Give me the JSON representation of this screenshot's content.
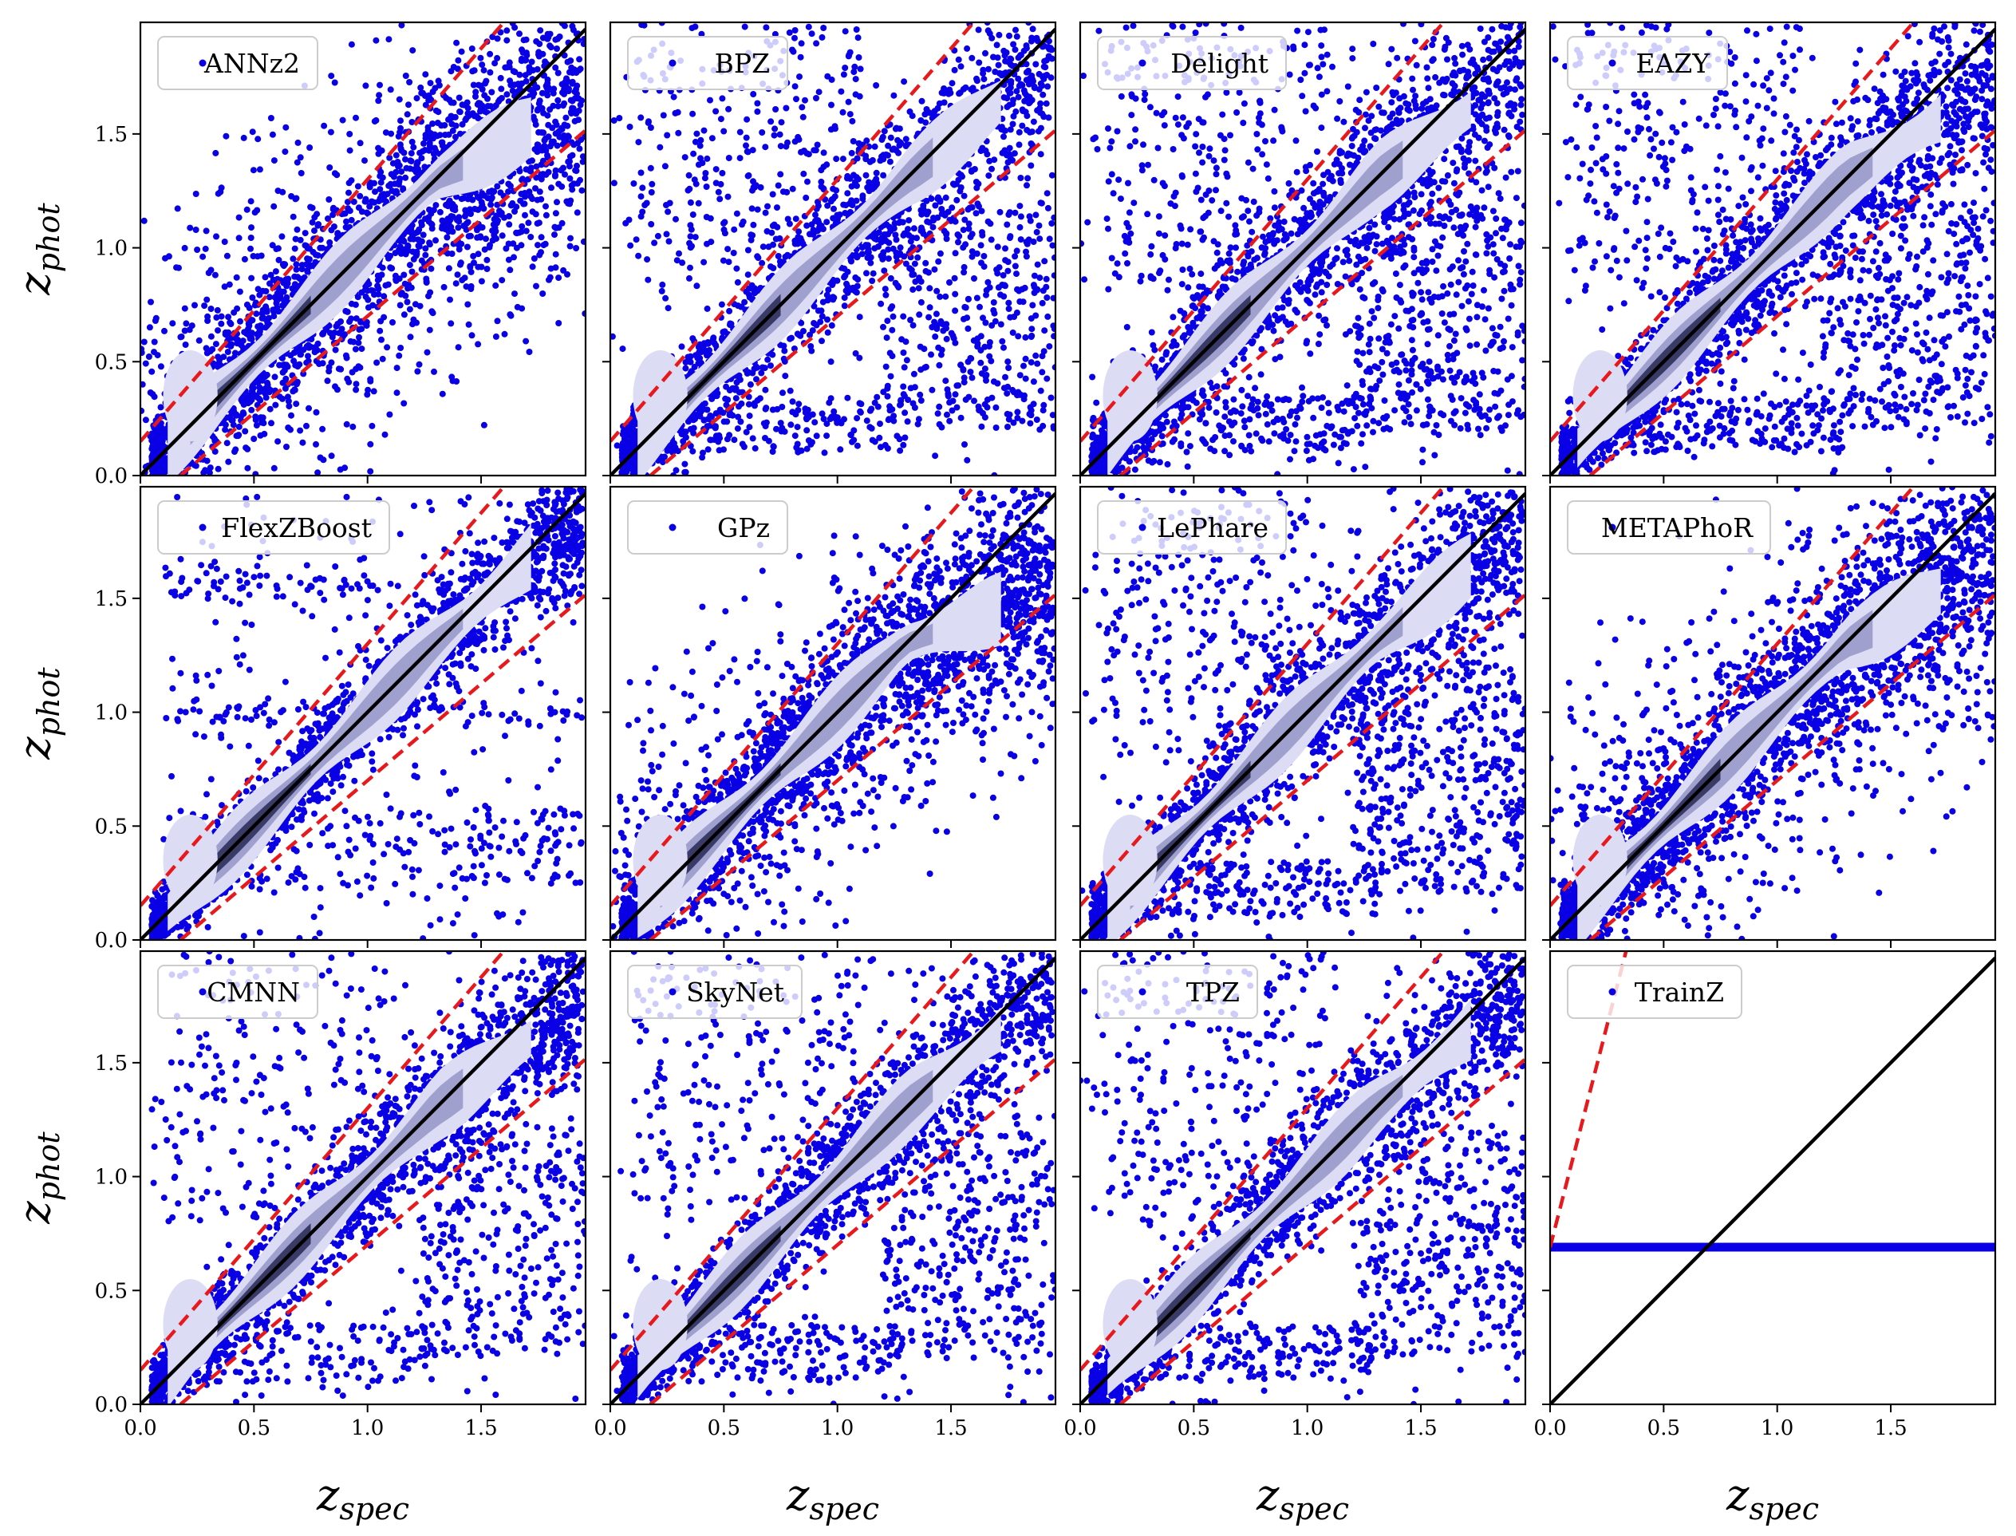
{
  "chart_data": {
    "type": "scatter",
    "layout": "3x4 grid of panels with shared axes",
    "xlabel": "z_spec",
    "ylabel": "z_phot",
    "xlabel_main": "z",
    "xlabel_sub": "spec",
    "ylabel_main": "z",
    "ylabel_sub": "phot",
    "xlim": [
      0.0,
      1.96
    ],
    "ylim": [
      0.0,
      1.99
    ],
    "xticks": [
      0.0,
      0.5,
      1.0,
      1.5
    ],
    "yticks": [
      0.0,
      0.5,
      1.0,
      1.5
    ],
    "xtick_labels": [
      "0.0",
      "0.5",
      "1.0",
      "1.5"
    ],
    "ytick_labels": [
      "0.0",
      "0.5",
      "1.0",
      "1.5"
    ],
    "grid": false,
    "legend_placement": "upper-left",
    "reference_lines": {
      "identity": {
        "style": "solid",
        "color": "#000000"
      },
      "outlier_bounds": {
        "style": "dashed",
        "color": "#e8191c",
        "upper": "z_phot = z_spec + 0.15*(1+z_spec)",
        "lower": "z_phot = z_spec - 0.15*(1+z_spec)"
      }
    },
    "colors": {
      "points": "#0a00e6",
      "density_light": "#dcdcf5",
      "density_mid": "#a0a0cf",
      "density_dark": "#3a3a66",
      "frame": "#000000"
    },
    "panels": [
      {
        "name": "ANNz2",
        "kind": "scatter",
        "scatter": 0.09,
        "outlier_fraction": 0.35,
        "outlier_pattern": "broad",
        "hi_z_bias": -0.25
      },
      {
        "name": "BPZ",
        "kind": "scatter",
        "scatter": 0.07,
        "outlier_fraction": 0.35,
        "outlier_pattern": "catastrophic",
        "hi_z_bias": -0.1
      },
      {
        "name": "Delight",
        "kind": "scatter",
        "scatter": 0.08,
        "outlier_fraction": 0.38,
        "outlier_pattern": "catastrophic",
        "hi_z_bias": -0.15
      },
      {
        "name": "EAZY",
        "kind": "scatter",
        "scatter": 0.07,
        "outlier_fraction": 0.35,
        "outlier_pattern": "catastrophic",
        "hi_z_bias": -0.2
      },
      {
        "name": "FlexZBoost",
        "kind": "scatter",
        "scatter": 0.05,
        "outlier_fraction": 0.2,
        "outlier_pattern": "stripes",
        "hi_z_bias": -0.05
      },
      {
        "name": "GPz",
        "kind": "scatter",
        "scatter": 0.08,
        "outlier_fraction": 0.25,
        "outlier_pattern": "broad",
        "hi_z_bias": -0.35
      },
      {
        "name": "LePhare",
        "kind": "scatter",
        "scatter": 0.07,
        "outlier_fraction": 0.35,
        "outlier_pattern": "catastrophic",
        "hi_z_bias": -0.1
      },
      {
        "name": "METAPhoR",
        "kind": "scatter",
        "scatter": 0.08,
        "outlier_fraction": 0.3,
        "outlier_pattern": "broad",
        "hi_z_bias": -0.25
      },
      {
        "name": "CMNN",
        "kind": "scatter",
        "scatter": 0.06,
        "outlier_fraction": 0.25,
        "outlier_pattern": "catastrophic",
        "hi_z_bias": -0.15
      },
      {
        "name": "SkyNet",
        "kind": "scatter",
        "scatter": 0.06,
        "outlier_fraction": 0.3,
        "outlier_pattern": "catastrophic",
        "hi_z_bias": -0.1
      },
      {
        "name": "TPZ",
        "kind": "scatter",
        "scatter": 0.06,
        "outlier_fraction": 0.3,
        "outlier_pattern": "catastrophic",
        "hi_z_bias": -0.1
      },
      {
        "name": "TrainZ",
        "kind": "constant",
        "constant_zphot": 0.69
      }
    ]
  }
}
